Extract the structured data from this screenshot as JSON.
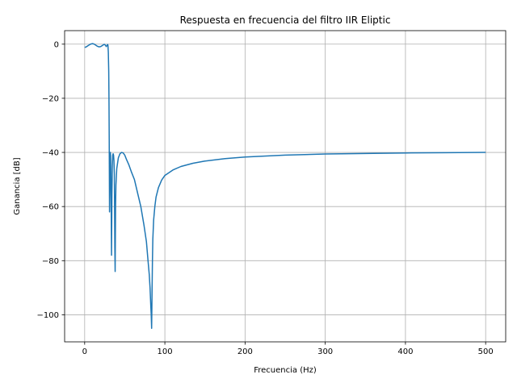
{
  "chart_data": {
    "type": "line",
    "title": "Respuesta en frecuencia del filtro IIR Eliptic",
    "xlabel": "Frecuencia (Hz)",
    "ylabel": "Ganancia [dB]",
    "xlim": [
      -25,
      525
    ],
    "ylim": [
      -110,
      5
    ],
    "xticks": [
      0,
      100,
      200,
      300,
      400,
      500
    ],
    "yticks": [
      0,
      -20,
      -40,
      -60,
      -80,
      -100
    ],
    "grid": true,
    "colors": {
      "line": "#1f77b4"
    },
    "series": [
      {
        "x": [
          0,
          2,
          4,
          6,
          8,
          10,
          12,
          14,
          16,
          18,
          20,
          22,
          24,
          25,
          26,
          27,
          28,
          28.5,
          29,
          29.5,
          30,
          30.3,
          30.6,
          31,
          31.3,
          31.6,
          32,
          32.3,
          32.6,
          33,
          33.5,
          34,
          34.5,
          35,
          35.5,
          36,
          36.5,
          37,
          37.3,
          37.6,
          38,
          38.5,
          39,
          40,
          42,
          44,
          46,
          48,
          50,
          52,
          55,
          58,
          62,
          66,
          70,
          74,
          77,
          79,
          80.5,
          81.5,
          82.5,
          83,
          83.5,
          84,
          84.5,
          85,
          86,
          87.5,
          89,
          92,
          96,
          100,
          110,
          120,
          135,
          150,
          175,
          200,
          250,
          300,
          350,
          400,
          450,
          500
        ],
        "y": [
          -1.2,
          -1.0,
          -0.6,
          -0.2,
          0.1,
          0.2,
          0.0,
          -0.4,
          -0.8,
          -1.0,
          -0.9,
          -0.5,
          -0.1,
          -0.1,
          -0.5,
          -0.9,
          -0.4,
          -0.1,
          -0.3,
          -3,
          -10,
          -20,
          -35,
          -62,
          -55,
          -45,
          -40,
          -41,
          -46,
          -58,
          -78,
          -55,
          -45,
          -41,
          -40.5,
          -41,
          -43,
          -48,
          -60,
          -75,
          -84,
          -60,
          -52,
          -46,
          -42,
          -40.5,
          -40,
          -40.2,
          -41,
          -42.5,
          -44.5,
          -47,
          -50,
          -55,
          -60,
          -67,
          -73,
          -80,
          -85,
          -90,
          -97,
          -100,
          -105,
          -92,
          -80,
          -72,
          -65,
          -60,
          -56.5,
          -53,
          -50.2,
          -48.5,
          -46.5,
          -45.2,
          -44,
          -43.2,
          -42.3,
          -41.7,
          -41.0,
          -40.6,
          -40.4,
          -40.2,
          -40.1,
          -40.0
        ]
      }
    ]
  }
}
